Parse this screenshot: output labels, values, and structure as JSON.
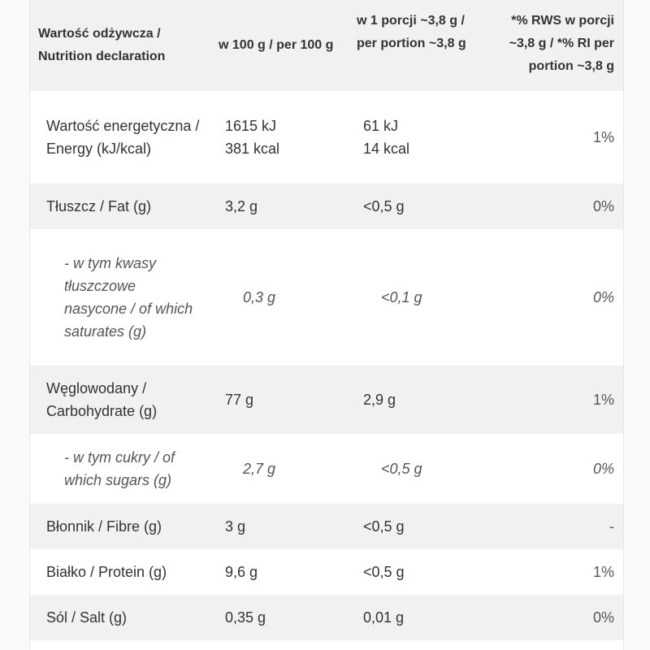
{
  "table": {
    "headers": {
      "col1": "Wartość odżywcza / Nutrition declaration",
      "col2": "w 100 g / per 100 g",
      "col3": "w 1 porcji ~3,8 g / per portion ~3,8 g",
      "col4": "*% RWS w porcji ~3,8 g / *% RI per portion ~3,8 g"
    },
    "rows": [
      {
        "label": "Wartość energetyczna / Energy (kJ/kcal)",
        "per100_line1": "1615 kJ",
        "per100_line2": "381 kcal",
        "portion_line1": "61 kJ",
        "portion_line2": "14 kcal",
        "ri": "1%"
      },
      {
        "label": "Tłuszcz / Fat (g)",
        "per100": "3,2 g",
        "portion": "<0,5 g",
        "ri": "0%"
      },
      {
        "label": "- w tym kwasy tłuszczowe nasycone / of which saturates (g)",
        "per100": "0,3 g",
        "portion": "<0,1 g",
        "ri": "0%"
      },
      {
        "label": "Węglowodany / Carbohydrate (g)",
        "per100": "77 g",
        "portion": "2,9 g",
        "ri": "1%"
      },
      {
        "label": "- w tym cukry / of which sugars (g)",
        "per100": "2,7 g",
        "portion": "<0,5 g",
        "ri": "0%"
      },
      {
        "label": "Błonnik / Fibre (g)",
        "per100": "3 g",
        "portion": "<0,5 g",
        "ri": "-"
      },
      {
        "label": "Białko / Protein (g)",
        "per100": "9,6 g",
        "portion": "<0,5 g",
        "ri": "1%"
      },
      {
        "label": "Sól / Salt (g)",
        "per100": "0,35 g",
        "portion": "0,01 g",
        "ri": "0%"
      }
    ]
  },
  "colors": {
    "header_bg": "#f1f1f1",
    "shaded_row_bg": "#f1f1f1",
    "text": "#333333",
    "subtext": "#555555"
  }
}
